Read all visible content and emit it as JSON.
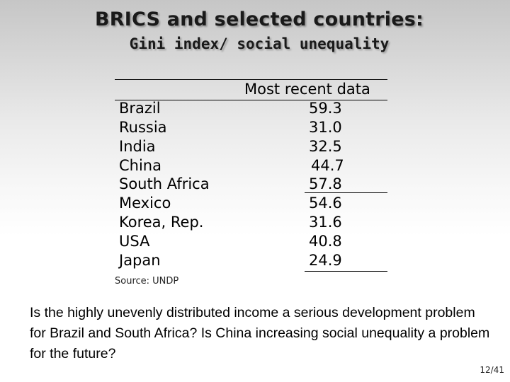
{
  "slide": {
    "title": "BRICS and selected countries:",
    "subtitle": "Gini index/ social unequality"
  },
  "table": {
    "column_header": "Most recent data",
    "rows": [
      {
        "country": "Brazil",
        "value": "59.3"
      },
      {
        "country": "Russia",
        "value": "31.0"
      },
      {
        "country": "India",
        "value": "32.5"
      },
      {
        "country": "China",
        "value": "44.7"
      },
      {
        "country": "South Africa",
        "value": "57.8"
      },
      {
        "country": "Mexico",
        "value": "54.6"
      },
      {
        "country": "Korea, Rep.",
        "value": "31.6"
      },
      {
        "country": "USA",
        "value": "40.8"
      },
      {
        "country": "Japan",
        "value": "24.9"
      }
    ]
  },
  "source": "Source: UNDP",
  "question": "Is the highly unevenly distributed income a serious development problem for Brazil and South Africa? Is China increasing social unequality a problem for the future?",
  "page_number": "12/41"
}
